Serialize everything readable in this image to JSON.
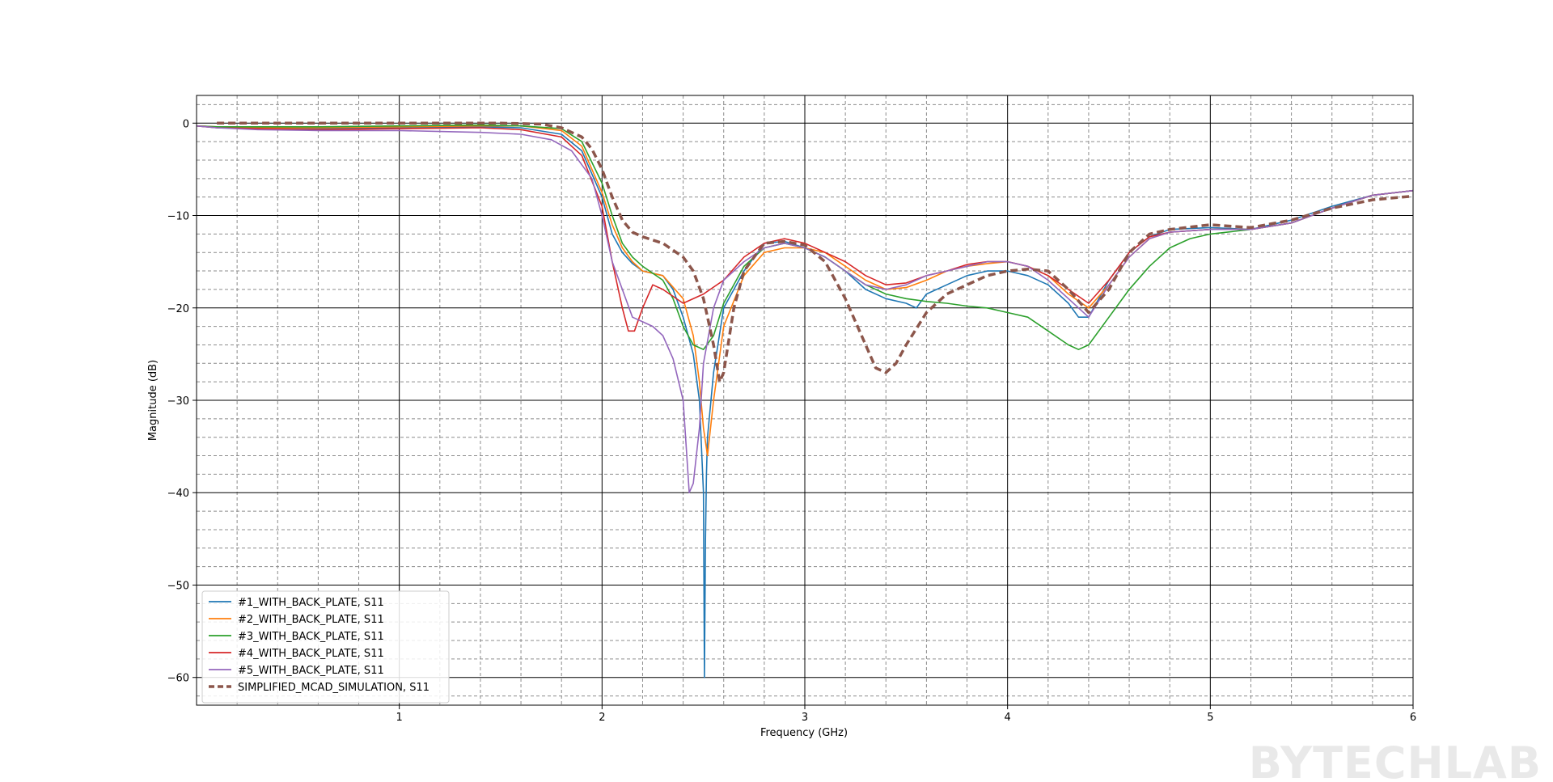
{
  "watermark": "BYTECHLAB",
  "chart_data": {
    "type": "line",
    "title": "",
    "xlabel": "Frequency (GHz)",
    "ylabel": "Magnitude (dB)",
    "xlim": [
      0.0,
      6.0
    ],
    "ylim": [
      -63,
      3
    ],
    "xticks": [
      1,
      2,
      3,
      4,
      5,
      6
    ],
    "yticks": [
      0,
      -10,
      -20,
      -30,
      -40,
      -50,
      -60
    ],
    "x_minor_step": 0.2,
    "y_minor_step": 2,
    "grid": true,
    "legend_position": "lower-left",
    "series": [
      {
        "name": "#1_WITH_BACK_PLATE, S11",
        "color": "#1f77b4",
        "style": "solid",
        "x": [
          0.0,
          0.1,
          0.3,
          0.6,
          1.0,
          1.4,
          1.6,
          1.8,
          1.9,
          2.0,
          2.05,
          2.1,
          2.15,
          2.2,
          2.3,
          2.35,
          2.4,
          2.45,
          2.48,
          2.5,
          2.505,
          2.51,
          2.515,
          2.52,
          2.55,
          2.6,
          2.7,
          2.8,
          2.9,
          3.0,
          3.1,
          3.2,
          3.3,
          3.4,
          3.5,
          3.55,
          3.6,
          3.7,
          3.8,
          3.9,
          4.0,
          4.1,
          4.2,
          4.3,
          4.35,
          4.4,
          4.5,
          4.6,
          4.7,
          4.8,
          5.0,
          5.2,
          5.4,
          5.6,
          5.8,
          6.0
        ],
        "y": [
          -0.3,
          -0.5,
          -0.6,
          -0.6,
          -0.5,
          -0.4,
          -0.5,
          -1.2,
          -3.0,
          -8.0,
          -12.0,
          -14.0,
          -15.2,
          -16.0,
          -16.5,
          -18.0,
          -21.0,
          -25.0,
          -30.0,
          -40.0,
          -60.0,
          -45.0,
          -38.0,
          -34.0,
          -27.0,
          -20.0,
          -16.0,
          -13.0,
          -12.8,
          -13.5,
          -14.5,
          -16.0,
          -18.0,
          -19.0,
          -19.5,
          -20.0,
          -18.5,
          -17.5,
          -16.5,
          -16.0,
          -16.0,
          -16.5,
          -17.5,
          -19.5,
          -21.0,
          -21.0,
          -17.0,
          -14.0,
          -12.3,
          -11.5,
          -11.3,
          -11.5,
          -10.5,
          -9.0,
          -7.8,
          -7.3
        ]
      },
      {
        "name": "#2_WITH_BACK_PLATE, S11",
        "color": "#ff7f0e",
        "style": "solid",
        "x": [
          0.0,
          0.1,
          0.3,
          0.6,
          1.0,
          1.4,
          1.6,
          1.8,
          1.9,
          2.0,
          2.05,
          2.1,
          2.15,
          2.2,
          2.3,
          2.4,
          2.45,
          2.48,
          2.5,
          2.52,
          2.55,
          2.6,
          2.7,
          2.8,
          2.9,
          3.0,
          3.1,
          3.2,
          3.3,
          3.4,
          3.5,
          3.6,
          3.7,
          3.8,
          3.9,
          4.0,
          4.1,
          4.2,
          4.3,
          4.4,
          4.5,
          4.6,
          4.7,
          4.8,
          5.0,
          5.2,
          5.4,
          5.6,
          5.8,
          6.0
        ],
        "y": [
          -0.3,
          -0.4,
          -0.5,
          -0.5,
          -0.4,
          -0.3,
          -0.3,
          -0.8,
          -2.5,
          -7.5,
          -11.0,
          -13.5,
          -15.0,
          -16.0,
          -16.5,
          -19.0,
          -23.0,
          -28.0,
          -33.0,
          -36.0,
          -30.0,
          -22.0,
          -16.5,
          -14.0,
          -13.5,
          -13.5,
          -14.0,
          -15.5,
          -17.0,
          -18.0,
          -17.8,
          -17.0,
          -16.0,
          -15.5,
          -15.2,
          -15.0,
          -15.5,
          -16.5,
          -18.5,
          -20.0,
          -17.5,
          -14.5,
          -12.5,
          -11.8,
          -11.5,
          -11.5,
          -10.8,
          -9.2,
          -7.8,
          -7.3
        ]
      },
      {
        "name": "#3_WITH_BACK_PLATE, S11",
        "color": "#2ca02c",
        "style": "solid",
        "x": [
          0.0,
          0.1,
          0.3,
          0.6,
          1.0,
          1.4,
          1.6,
          1.8,
          1.9,
          2.0,
          2.05,
          2.1,
          2.15,
          2.2,
          2.3,
          2.35,
          2.4,
          2.45,
          2.5,
          2.55,
          2.6,
          2.7,
          2.8,
          2.9,
          3.0,
          3.1,
          3.2,
          3.3,
          3.4,
          3.5,
          3.6,
          3.7,
          3.8,
          3.9,
          4.0,
          4.1,
          4.2,
          4.3,
          4.35,
          4.4,
          4.5,
          4.6,
          4.7,
          4.8,
          4.9,
          5.0,
          5.2,
          5.4,
          5.6,
          5.8,
          6.0
        ],
        "y": [
          -0.3,
          -0.4,
          -0.4,
          -0.4,
          -0.3,
          -0.2,
          -0.3,
          -0.6,
          -2.0,
          -6.5,
          -10.0,
          -13.0,
          -14.5,
          -15.5,
          -17.0,
          -19.0,
          -22.0,
          -24.0,
          -24.5,
          -23.0,
          -19.5,
          -15.5,
          -13.5,
          -13.0,
          -13.5,
          -14.5,
          -16.0,
          -17.5,
          -18.5,
          -19.0,
          -19.3,
          -19.5,
          -19.8,
          -20.0,
          -20.5,
          -21.0,
          -22.5,
          -24.0,
          -24.5,
          -24.0,
          -21.0,
          -18.0,
          -15.5,
          -13.5,
          -12.5,
          -12.0,
          -11.5,
          -10.8,
          -9.2,
          -7.8,
          -7.3
        ]
      },
      {
        "name": "#4_WITH_BACK_PLATE, S11",
        "color": "#d62728",
        "style": "solid",
        "x": [
          0.0,
          0.1,
          0.3,
          0.6,
          1.0,
          1.4,
          1.6,
          1.8,
          1.9,
          2.0,
          2.05,
          2.1,
          2.13,
          2.16,
          2.2,
          2.25,
          2.3,
          2.4,
          2.5,
          2.6,
          2.7,
          2.8,
          2.9,
          3.0,
          3.1,
          3.2,
          3.3,
          3.4,
          3.5,
          3.6,
          3.7,
          3.8,
          3.9,
          4.0,
          4.1,
          4.2,
          4.3,
          4.4,
          4.5,
          4.6,
          4.7,
          4.8,
          5.0,
          5.2,
          5.4,
          5.6,
          5.8,
          6.0
        ],
        "y": [
          -0.3,
          -0.5,
          -0.6,
          -0.7,
          -0.6,
          -0.5,
          -0.7,
          -1.5,
          -3.5,
          -9.0,
          -15.0,
          -20.0,
          -22.5,
          -22.5,
          -20.0,
          -17.5,
          -18.0,
          -19.5,
          -18.5,
          -17.0,
          -14.5,
          -13.0,
          -12.5,
          -13.0,
          -14.0,
          -15.0,
          -16.5,
          -17.5,
          -17.3,
          -16.5,
          -16.0,
          -15.3,
          -15.0,
          -15.0,
          -15.5,
          -16.5,
          -18.0,
          -19.5,
          -17.0,
          -14.0,
          -12.3,
          -11.8,
          -11.5,
          -11.5,
          -10.8,
          -9.2,
          -7.8,
          -7.3
        ]
      },
      {
        "name": "#5_WITH_BACK_PLATE, S11",
        "color": "#9467bd",
        "style": "solid",
        "x": [
          0.0,
          0.1,
          0.3,
          0.6,
          1.0,
          1.2,
          1.4,
          1.6,
          1.75,
          1.85,
          1.95,
          2.0,
          2.05,
          2.1,
          2.15,
          2.2,
          2.25,
          2.3,
          2.35,
          2.4,
          2.43,
          2.45,
          2.48,
          2.5,
          2.55,
          2.6,
          2.7,
          2.8,
          2.9,
          3.0,
          3.1,
          3.2,
          3.3,
          3.4,
          3.5,
          3.6,
          3.7,
          3.8,
          3.9,
          4.0,
          4.1,
          4.2,
          4.3,
          4.4,
          4.5,
          4.6,
          4.7,
          4.8,
          5.0,
          5.2,
          5.4,
          5.6,
          5.8,
          6.0
        ],
        "y": [
          -0.3,
          -0.5,
          -0.7,
          -0.8,
          -0.8,
          -0.9,
          -1.0,
          -1.2,
          -1.8,
          -3.0,
          -6.0,
          -10.0,
          -15.0,
          -18.0,
          -21.0,
          -21.5,
          -22.0,
          -23.0,
          -25.5,
          -30.0,
          -40.0,
          -39.0,
          -33.0,
          -26.0,
          -20.0,
          -17.0,
          -15.0,
          -13.5,
          -13.0,
          -13.5,
          -14.5,
          -16.0,
          -17.5,
          -18.0,
          -17.5,
          -16.5,
          -16.0,
          -15.5,
          -15.0,
          -15.0,
          -15.5,
          -17.0,
          -19.0,
          -21.0,
          -17.5,
          -14.5,
          -12.5,
          -11.8,
          -11.5,
          -11.5,
          -10.8,
          -9.2,
          -7.8,
          -7.3
        ]
      },
      {
        "name": "SIMPLIFIED_MCAD_SIMULATION, S11",
        "color": "#8c564b",
        "style": "dashed",
        "x": [
          0.1,
          0.5,
          1.0,
          1.5,
          1.7,
          1.8,
          1.9,
          1.95,
          2.0,
          2.05,
          2.1,
          2.15,
          2.2,
          2.3,
          2.4,
          2.45,
          2.5,
          2.55,
          2.58,
          2.6,
          2.65,
          2.7,
          2.8,
          2.9,
          3.0,
          3.1,
          3.2,
          3.3,
          3.35,
          3.4,
          3.45,
          3.5,
          3.6,
          3.7,
          3.8,
          3.9,
          4.0,
          4.1,
          4.2,
          4.3,
          4.4,
          4.5,
          4.6,
          4.7,
          4.8,
          5.0,
          5.2,
          5.4,
          5.6,
          5.8,
          6.0
        ],
        "y": [
          0.0,
          0.0,
          0.0,
          0.0,
          -0.1,
          -0.5,
          -1.5,
          -2.8,
          -5.0,
          -8.0,
          -10.5,
          -11.8,
          -12.3,
          -13.0,
          -14.5,
          -16.0,
          -19.0,
          -24.0,
          -28.0,
          -27.0,
          -20.0,
          -16.0,
          -13.0,
          -12.8,
          -13.2,
          -15.0,
          -19.0,
          -24.0,
          -26.5,
          -27.0,
          -26.0,
          -24.0,
          -20.5,
          -18.5,
          -17.5,
          -16.5,
          -16.0,
          -15.8,
          -16.0,
          -18.0,
          -20.5,
          -18.0,
          -14.0,
          -12.0,
          -11.5,
          -11.0,
          -11.3,
          -10.5,
          -9.2,
          -8.3,
          -7.9
        ]
      }
    ]
  }
}
